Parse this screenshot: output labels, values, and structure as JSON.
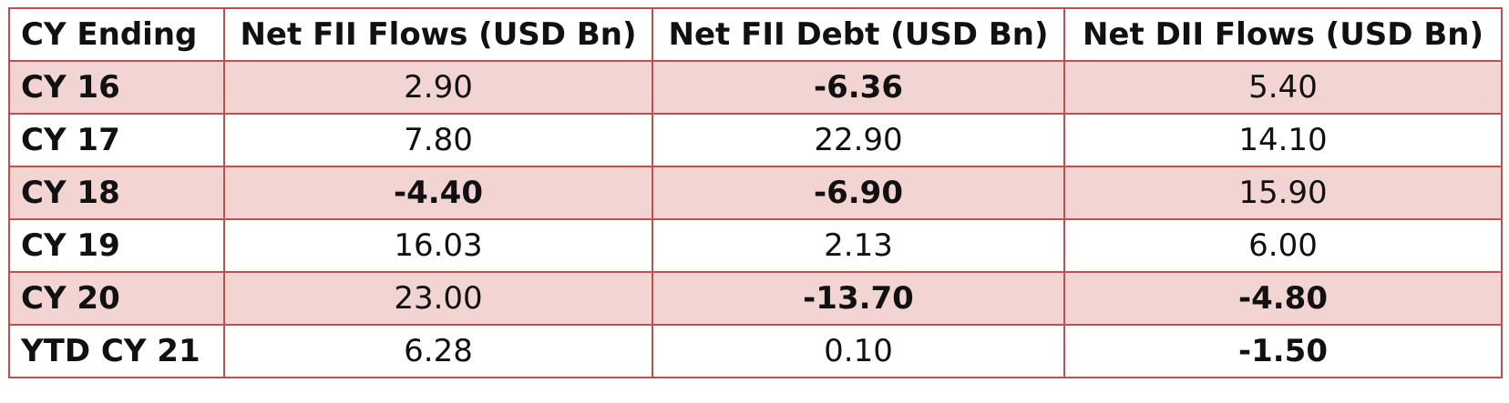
{
  "table": {
    "headers": [
      "CY Ending",
      "Net FII Flows (USD Bn)",
      "Net FII Debt (USD Bn)",
      "Net DII Flows (USD Bn)"
    ],
    "rows": [
      {
        "label": "CY 16",
        "values": [
          "2.90",
          "-6.36",
          "5.40"
        ],
        "shaded": true
      },
      {
        "label": "CY 17",
        "values": [
          "7.80",
          "22.90",
          "14.10"
        ],
        "shaded": false
      },
      {
        "label": "CY 18",
        "values": [
          "-4.40",
          "-6.90",
          "15.90"
        ],
        "shaded": true
      },
      {
        "label": "CY 19",
        "values": [
          "16.03",
          "2.13",
          "6.00"
        ],
        "shaded": false
      },
      {
        "label": "CY 20",
        "values": [
          "23.00",
          "-13.70",
          "-4.80"
        ],
        "shaded": true
      },
      {
        "label": "YTD CY 21",
        "values": [
          "6.28",
          "0.10",
          "-1.50"
        ],
        "shaded": false
      }
    ],
    "colors": {
      "border": "#c0504d",
      "shaded_row": "#f2d4d3"
    }
  }
}
